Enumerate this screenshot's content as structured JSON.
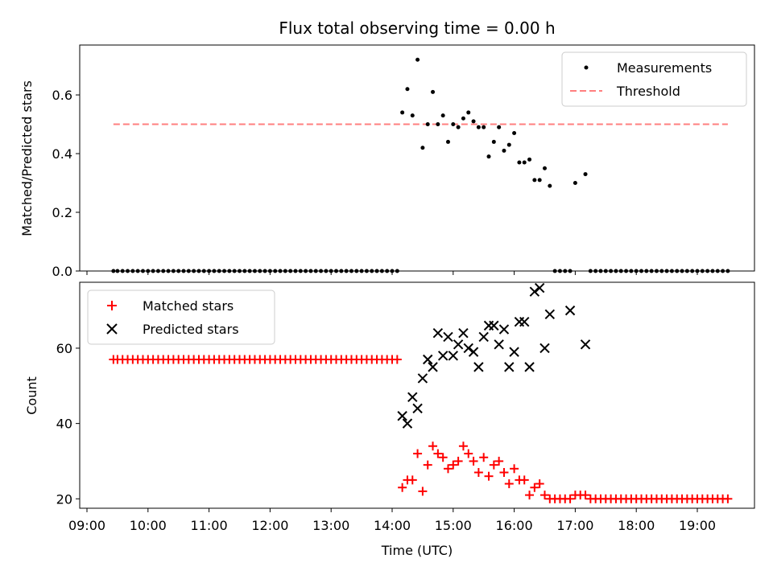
{
  "chart_data": [
    {
      "type": "scatter",
      "title": "Flux total observing time = 0.00 h",
      "ylabel": "Matched/Predicted stars",
      "xlabel": "",
      "xlim": [
        "09:00",
        "20:00"
      ],
      "ylim": [
        0,
        0.77
      ],
      "yticks": [
        "0.0",
        "0.2",
        "0.4",
        "0.6"
      ],
      "legend": "top-right",
      "series": [
        {
          "name": "Measurements",
          "color": "#000000",
          "marker": "dot",
          "x": [
            "09:26",
            "09:30",
            "09:35",
            "09:40",
            "09:45",
            "09:50",
            "09:55",
            "10:00",
            "10:05",
            "10:10",
            "10:15",
            "10:20",
            "10:25",
            "10:30",
            "10:35",
            "10:40",
            "10:45",
            "10:50",
            "10:55",
            "11:00",
            "11:05",
            "11:10",
            "11:15",
            "11:20",
            "11:25",
            "11:30",
            "11:35",
            "11:40",
            "11:45",
            "11:50",
            "11:55",
            "12:00",
            "12:05",
            "12:10",
            "12:15",
            "12:20",
            "12:25",
            "12:30",
            "12:35",
            "12:40",
            "12:45",
            "12:50",
            "12:55",
            "13:00",
            "13:05",
            "13:10",
            "13:15",
            "13:20",
            "13:25",
            "13:30",
            "13:35",
            "13:40",
            "13:45",
            "13:50",
            "13:55",
            "14:00",
            "14:05",
            "14:10",
            "14:15",
            "14:20",
            "14:25",
            "14:30",
            "14:35",
            "14:40",
            "14:45",
            "14:50",
            "14:55",
            "15:00",
            "15:05",
            "15:10",
            "15:15",
            "15:20",
            "15:25",
            "15:30",
            "15:35",
            "15:40",
            "15:45",
            "15:50",
            "15:55",
            "16:00",
            "16:05",
            "16:10",
            "16:15",
            "16:20",
            "16:25",
            "16:30",
            "16:35",
            "16:40",
            "16:45",
            "16:50",
            "16:55",
            "17:00",
            "17:05",
            "17:10",
            "17:15",
            "17:20",
            "17:25",
            "17:30",
            "17:35",
            "17:40",
            "17:45",
            "17:50",
            "17:55",
            "18:00",
            "18:05",
            "18:10",
            "18:15",
            "18:20",
            "18:25",
            "18:30",
            "18:35",
            "18:40",
            "18:45",
            "18:50",
            "18:55",
            "19:00",
            "19:05",
            "19:10",
            "19:15",
            "19:20",
            "19:25",
            "19:30"
          ],
          "y": [
            0,
            0,
            0,
            0,
            0,
            0,
            0,
            0,
            0,
            0,
            0,
            0,
            0,
            0,
            0,
            0,
            0,
            0,
            0,
            0,
            0,
            0,
            0,
            0,
            0,
            0,
            0,
            0,
            0,
            0,
            0,
            0,
            0,
            0,
            0,
            0,
            0,
            0,
            0,
            0,
            0,
            0,
            0,
            0,
            0,
            0,
            0,
            0,
            0,
            0,
            0,
            0,
            0,
            0,
            0,
            0,
            0,
            0.54,
            0.62,
            0.53,
            0.72,
            0.42,
            0.5,
            0.61,
            0.5,
            0.53,
            0.44,
            0.5,
            0.49,
            0.52,
            0.54,
            0.51,
            0.49,
            0.49,
            0.39,
            0.44,
            0.49,
            0.41,
            0.43,
            0.47,
            0.37,
            0.37,
            0.38,
            0.31,
            0.31,
            0.35,
            0.29,
            0,
            0,
            0,
            0,
            0.3,
            null,
            0.33,
            0,
            0,
            0,
            0,
            0,
            0,
            0,
            0,
            0,
            0,
            0,
            0,
            0,
            0,
            0,
            0,
            0,
            0,
            0,
            0,
            0,
            0,
            0,
            0,
            0,
            0,
            0,
            0
          ]
        },
        {
          "name": "Threshold",
          "color": "#ff7f7f",
          "style": "dashed",
          "x": [
            "09:26",
            "19:30"
          ],
          "y": [
            0.5,
            0.5
          ]
        }
      ]
    },
    {
      "type": "scatter",
      "title": "",
      "ylabel": "Count",
      "xlabel": "Time (UTC)",
      "xlim": [
        "09:00",
        "20:00"
      ],
      "ylim": [
        17.5,
        77.5
      ],
      "xticks": [
        "09:00",
        "10:00",
        "11:00",
        "12:00",
        "13:00",
        "14:00",
        "15:00",
        "16:00",
        "17:00",
        "18:00",
        "19:00"
      ],
      "yticks": [
        "20",
        "40",
        "60"
      ],
      "legend": "top-left",
      "series": [
        {
          "name": "Matched stars",
          "color": "#ff0000",
          "marker": "plus",
          "x": [
            "09:26",
            "09:30",
            "09:35",
            "09:40",
            "09:45",
            "09:50",
            "09:55",
            "10:00",
            "10:05",
            "10:10",
            "10:15",
            "10:20",
            "10:25",
            "10:30",
            "10:35",
            "10:40",
            "10:45",
            "10:50",
            "10:55",
            "11:00",
            "11:05",
            "11:10",
            "11:15",
            "11:20",
            "11:25",
            "11:30",
            "11:35",
            "11:40",
            "11:45",
            "11:50",
            "11:55",
            "12:00",
            "12:05",
            "12:10",
            "12:15",
            "12:20",
            "12:25",
            "12:30",
            "12:35",
            "12:40",
            "12:45",
            "12:50",
            "12:55",
            "13:00",
            "13:05",
            "13:10",
            "13:15",
            "13:20",
            "13:25",
            "13:30",
            "13:35",
            "13:40",
            "13:45",
            "13:50",
            "13:55",
            "14:00",
            "14:05",
            "14:10",
            "14:15",
            "14:20",
            "14:25",
            "14:30",
            "14:35",
            "14:40",
            "14:45",
            "14:50",
            "14:55",
            "15:00",
            "15:05",
            "15:10",
            "15:15",
            "15:20",
            "15:25",
            "15:30",
            "15:35",
            "15:40",
            "15:45",
            "15:50",
            "15:55",
            "16:00",
            "16:05",
            "16:10",
            "16:15",
            "16:20",
            "16:25",
            "16:30",
            "16:35",
            "16:40",
            "16:45",
            "16:50",
            "16:55",
            "17:00",
            "17:05",
            "17:10",
            "17:15",
            "17:20",
            "17:25",
            "17:30",
            "17:35",
            "17:40",
            "17:45",
            "17:50",
            "17:55",
            "18:00",
            "18:05",
            "18:10",
            "18:15",
            "18:20",
            "18:25",
            "18:30",
            "18:35",
            "18:40",
            "18:45",
            "18:50",
            "18:55",
            "19:00",
            "19:05",
            "19:10",
            "19:15",
            "19:20",
            "19:25",
            "19:30"
          ],
          "y": [
            57,
            57,
            57,
            57,
            57,
            57,
            57,
            57,
            57,
            57,
            57,
            57,
            57,
            57,
            57,
            57,
            57,
            57,
            57,
            57,
            57,
            57,
            57,
            57,
            57,
            57,
            57,
            57,
            57,
            57,
            57,
            57,
            57,
            57,
            57,
            57,
            57,
            57,
            57,
            57,
            57,
            57,
            57,
            57,
            57,
            57,
            57,
            57,
            57,
            57,
            57,
            57,
            57,
            57,
            57,
            57,
            57,
            23,
            25,
            25,
            32,
            22,
            29,
            34,
            32,
            31,
            28,
            29,
            30,
            34,
            32,
            30,
            27,
            31,
            26,
            29,
            30,
            27,
            24,
            28,
            25,
            25,
            21,
            23,
            24,
            21,
            20,
            20,
            20,
            20,
            20,
            21,
            21,
            21,
            20,
            20,
            20,
            20,
            20,
            20,
            20,
            20,
            20,
            20,
            20,
            20,
            20,
            20,
            20,
            20,
            20,
            20,
            20,
            20,
            20,
            20,
            20,
            20,
            20,
            20,
            20,
            20
          ]
        },
        {
          "name": "Predicted stars",
          "color": "#000000",
          "marker": "x",
          "x": [
            "14:10",
            "14:15",
            "14:20",
            "14:25",
            "14:30",
            "14:35",
            "14:40",
            "14:45",
            "14:50",
            "14:55",
            "15:00",
            "15:05",
            "15:10",
            "15:15",
            "15:20",
            "15:25",
            "15:30",
            "15:35",
            "15:40",
            "15:45",
            "15:50",
            "15:55",
            "16:00",
            "16:05",
            "16:10",
            "16:15",
            "16:20",
            "16:25",
            "16:30",
            "16:35",
            "16:55",
            "17:10"
          ],
          "y": [
            42,
            40,
            47,
            44,
            52,
            57,
            55,
            64,
            58,
            63,
            58,
            61,
            64,
            60,
            59,
            55,
            63,
            66,
            66,
            61,
            65,
            55,
            59,
            67,
            67,
            55,
            75,
            76,
            60,
            69,
            70,
            61
          ]
        }
      ]
    }
  ]
}
